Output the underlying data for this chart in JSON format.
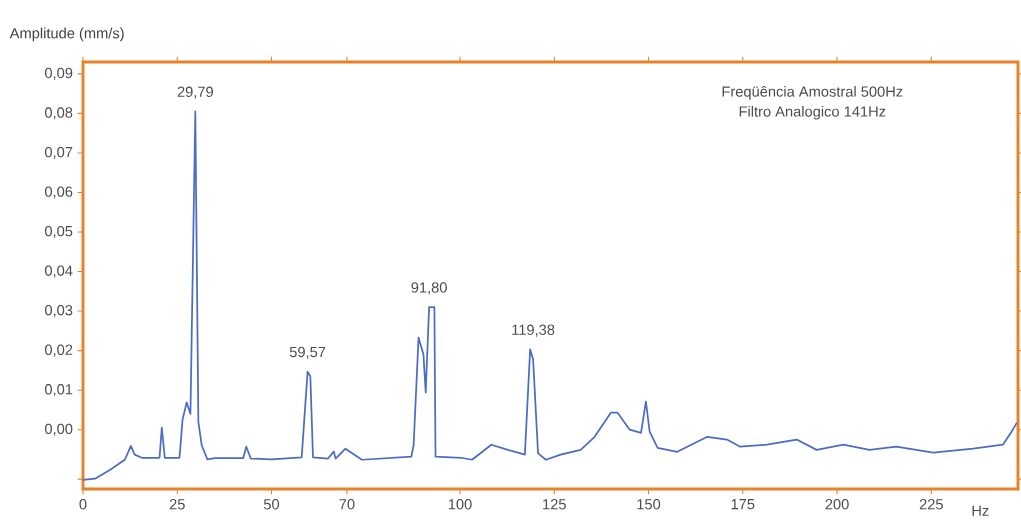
{
  "chart_data": {
    "type": "line",
    "ylabel": "Amplitude (mm/s)",
    "xlabel": "Hz",
    "annotations": [
      {
        "text": "29,79",
        "x": 29.79,
        "y": 0.0805
      },
      {
        "text": "59,57",
        "x": 59.57,
        "y": 0.0147
      },
      {
        "text": "91,80",
        "x": 91.8,
        "y": 0.031
      },
      {
        "text": "119,38",
        "x": 119.38,
        "y": 0.0203
      },
      "Freqüência Amostral 500Hz",
      "Filtro Analogico 141Hz"
    ],
    "x": [
      0,
      3.2,
      7.1,
      11.1,
      12.7,
      13.7,
      15.6,
      20.3,
      20.9,
      21.7,
      25.6,
      26.4,
      27.5,
      28.5,
      29.79,
      30.6,
      31.5,
      33,
      35,
      42.5,
      43.3,
      44.5,
      50,
      55,
      58,
      59.57,
      60.3,
      61,
      65,
      66.5,
      67,
      69.6,
      74,
      87.1,
      87.7,
      89,
      90.3,
      90.9,
      91.8,
      93.2,
      93.5,
      100.3,
      103.2,
      108.3,
      112.7,
      117.2,
      118.6,
      119.38,
      120.7,
      122.8,
      126.7,
      132,
      135.7,
      140,
      141.8,
      145,
      148,
      149.3,
      150.3,
      152.4,
      157.6,
      165.6,
      170.8,
      174.3,
      181.4,
      189.3,
      194.6,
      201.7,
      208.6,
      215.7,
      225.5,
      236.1,
      244,
      246.1,
      247.7
    ],
    "series": [
      {
        "color": "#4a6cc4",
        "values": [
          -0.0127,
          -0.0124,
          -0.0102,
          -0.0076,
          -0.0041,
          -0.0063,
          -0.0071,
          -0.0071,
          0.0005,
          -0.0071,
          -0.0071,
          0.0025,
          0.0069,
          0.004,
          0.0805,
          0.002,
          -0.004,
          -0.0075,
          -0.0072,
          -0.0072,
          -0.0043,
          -0.0073,
          -0.0075,
          -0.0072,
          -0.007,
          0.0147,
          0.0135,
          -0.007,
          -0.0073,
          -0.0055,
          -0.0073,
          -0.0048,
          -0.0076,
          -0.0068,
          -0.0038,
          0.0233,
          0.019,
          0.0094,
          0.031,
          0.031,
          -0.0068,
          -0.0071,
          -0.0076,
          -0.0038,
          -0.0051,
          -0.0063,
          0.0203,
          0.0178,
          -0.006,
          -0.0076,
          -0.0063,
          -0.0051,
          -0.0018,
          0.0043,
          0.0043,
          0.0,
          -0.0008,
          0.0071,
          -0.0005,
          -0.0046,
          -0.0056,
          -0.0018,
          -0.0025,
          -0.0043,
          -0.0038,
          -0.0025,
          -0.0051,
          -0.0038,
          -0.0051,
          -0.0043,
          -0.0058,
          -0.0048,
          -0.0038,
          -0.0008,
          0.0018
        ]
      }
    ],
    "xlim": [
      0,
      248
    ],
    "ylim": [
      -0.015,
      0.093
    ],
    "xticks": [
      0,
      25,
      50,
      70,
      100,
      125,
      150,
      175,
      200,
      225
    ],
    "yticks": [
      {
        "value": -0.0125,
        "label": null
      },
      {
        "value": 0,
        "label": "0,00"
      },
      {
        "value": 0.01,
        "label": "0,01"
      },
      {
        "value": 0.02,
        "label": "0,02"
      },
      {
        "value": 0.03,
        "label": "0,03"
      },
      {
        "value": 0.04,
        "label": "0,04"
      },
      {
        "value": 0.05,
        "label": "0,05"
      },
      {
        "value": 0.06,
        "label": "0,06"
      },
      {
        "value": 0.07,
        "label": "0,07"
      },
      {
        "value": 0.08,
        "label": "0,08"
      },
      {
        "value": 0.09,
        "label": "0,09"
      }
    ],
    "marker": "none",
    "line_style": "solid",
    "grid": false
  }
}
